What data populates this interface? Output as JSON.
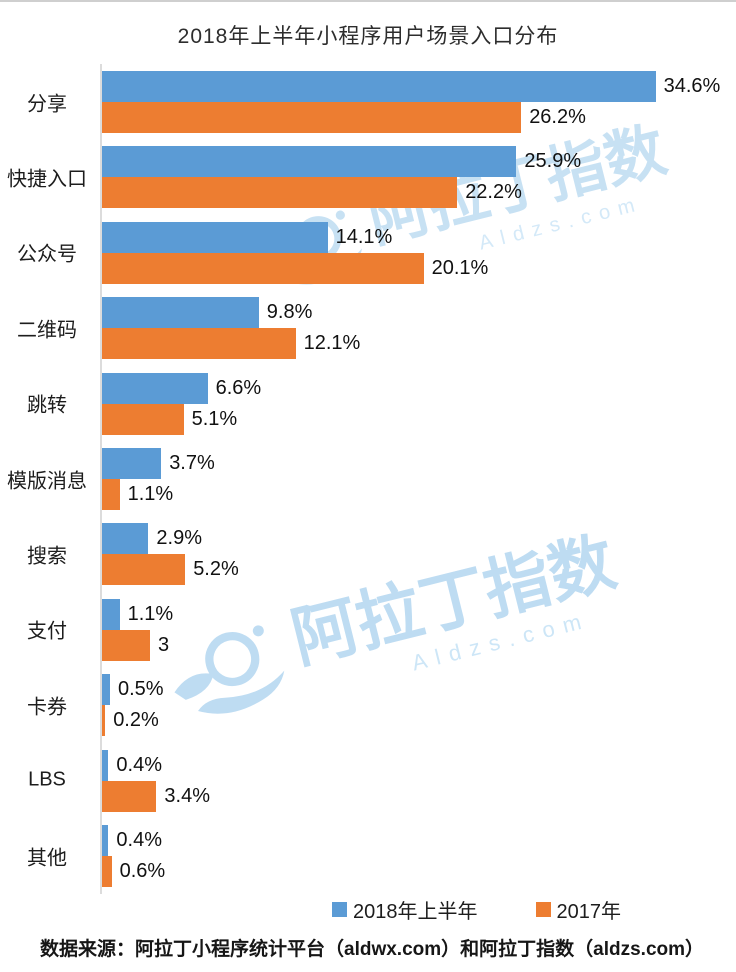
{
  "title": "2018年上半年小程序用户场景入口分布",
  "watermark": {
    "text": "阿拉丁指数",
    "subtext": "Aldzs.com"
  },
  "legend": [
    {
      "label": "2018年上半年",
      "color": "#5B9BD5"
    },
    {
      "label": "2017年",
      "color": "#ED7D31"
    }
  ],
  "source": "数据来源：阿拉丁小程序统计平台（aldwx.com）和阿拉丁指数（aldzs.com）",
  "chart_data": {
    "type": "bar",
    "orientation": "horizontal",
    "title": "2018年上半年小程序用户场景入口分布",
    "categories": [
      "分享",
      "快捷入口",
      "公众号",
      "二维码",
      "跳转",
      "模版消息",
      "搜索",
      "支付",
      "卡券",
      "LBS",
      "其他"
    ],
    "series": [
      {
        "name": "2018年上半年",
        "color": "#5B9BD5",
        "values": [
          34.6,
          25.9,
          14.1,
          9.8,
          6.6,
          3.7,
          2.9,
          1.1,
          0.5,
          0.4,
          0.4
        ],
        "labels": [
          "34.6%",
          "25.9%",
          "14.1%",
          "9.8%",
          "6.6%",
          "3.7%",
          "2.9%",
          "1.1%",
          "0.5%",
          "0.4%",
          "0.4%"
        ]
      },
      {
        "name": "2017年",
        "color": "#ED7D31",
        "values": [
          26.2,
          22.2,
          20.1,
          12.1,
          5.1,
          1.1,
          5.2,
          3,
          0.2,
          3.4,
          0.6
        ],
        "labels": [
          "26.2%",
          "22.2%",
          "20.1%",
          "12.1%",
          "5.1%",
          "1.1%",
          "5.2%",
          "3",
          "0.2%",
          "3.4%",
          "0.6%"
        ]
      }
    ],
    "xlim": [
      0,
      35
    ],
    "value_labels": true,
    "grid": false,
    "legend_position": "bottom-right",
    "source_note": "数据来源：阿拉丁小程序统计平台（aldwx.com）和阿拉丁指数（aldzs.com）"
  }
}
